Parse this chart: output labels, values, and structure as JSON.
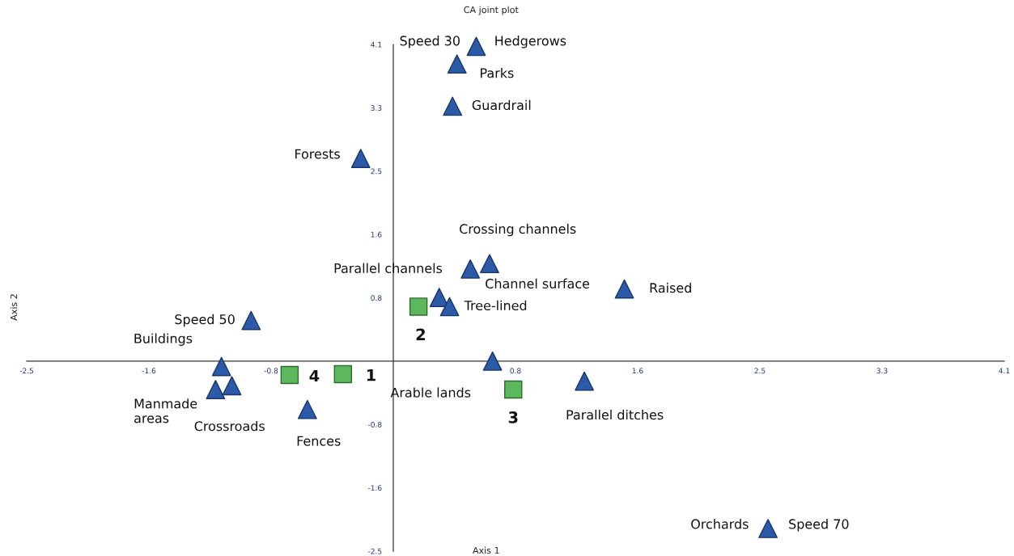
{
  "chart_data": {
    "type": "scatter",
    "title": "CA joint plot",
    "xlabel": "Axis 1",
    "ylabel": "Axis 2",
    "xlim": [
      -2.475,
      4.125
    ],
    "ylim": [
      -2.475,
      4.125
    ],
    "xticks": [
      {
        "value": -2.475,
        "label": "-2.5"
      },
      {
        "value": -1.65,
        "label": "-1.6"
      },
      {
        "value": -0.825,
        "label": "-0.8"
      },
      {
        "value": 0.825,
        "label": "0.8"
      },
      {
        "value": 1.65,
        "label": "1.6"
      },
      {
        "value": 2.475,
        "label": "2.5"
      },
      {
        "value": 3.3,
        "label": "3.3"
      },
      {
        "value": 4.125,
        "label": "4.1"
      }
    ],
    "yticks": [
      {
        "value": -2.475,
        "label": "-2.5"
      },
      {
        "value": -1.65,
        "label": "-1.6"
      },
      {
        "value": -0.825,
        "label": "-0.8"
      },
      {
        "value": 0.825,
        "label": "0.8"
      },
      {
        "value": 1.65,
        "label": "1.6"
      },
      {
        "value": 2.475,
        "label": "2.5"
      },
      {
        "value": 3.3,
        "label": "3.3"
      },
      {
        "value": 4.125,
        "label": "4.1"
      }
    ],
    "grid": false,
    "legend": false,
    "series": [
      {
        "color": "#2b5ba8",
        "marker": "triangle",
        "x": [
          0.56,
          0.43,
          0.4,
          -0.22,
          0.65,
          0.52,
          0.31,
          0.38,
          1.56,
          -0.96,
          -1.16,
          -1.2,
          -1.09,
          -0.58,
          0.67,
          1.29,
          2.53
        ],
        "values": [
          4.1,
          3.87,
          3.32,
          2.64,
          1.27,
          1.2,
          0.83,
          0.71,
          0.94,
          0.53,
          -0.07,
          -0.37,
          -0.32,
          -0.63,
          0.0,
          -0.26,
          -2.18
        ]
      },
      {
        "color": "#5cb85c",
        "marker": "square",
        "x": [
          -0.34,
          0.17,
          0.81,
          -0.7
        ],
        "values": [
          -0.17,
          0.71,
          -0.37,
          -0.18
        ]
      }
    ],
    "annotations": [
      {
        "text": "Speed 30",
        "x": 0.56,
        "y": 4.1
      },
      {
        "text": "Hedgerows",
        "x": 0.56,
        "y": 4.1
      },
      {
        "text": "Parks",
        "x": 0.43,
        "y": 3.87
      },
      {
        "text": "Guardrail",
        "x": 0.4,
        "y": 3.32
      },
      {
        "text": "Forests",
        "x": -0.22,
        "y": 2.64
      },
      {
        "text": "Crossing channels",
        "x": 0.65,
        "y": 1.27
      },
      {
        "text": "Channel surface",
        "x": 0.52,
        "y": 1.2
      },
      {
        "text": "Parallel channels",
        "x": 0.31,
        "y": 0.83
      },
      {
        "text": "Tree-lined",
        "x": 0.38,
        "y": 0.71
      },
      {
        "text": "Raised",
        "x": 1.56,
        "y": 0.94
      },
      {
        "text": "Speed 50",
        "x": -0.96,
        "y": 0.53
      },
      {
        "text": "Buildings",
        "x": -1.16,
        "y": -0.07
      },
      {
        "text": "Manmade\nareas",
        "x": -1.2,
        "y": -0.37
      },
      {
        "text": "Crossroads",
        "x": -1.09,
        "y": -0.32
      },
      {
        "text": "Fences",
        "x": -0.58,
        "y": -0.63
      },
      {
        "text": "Arable lands",
        "x": 0.67,
        "y": 0.0
      },
      {
        "text": "Parallel ditches",
        "x": 1.29,
        "y": -0.26
      },
      {
        "text": "Orchards",
        "x": 2.53,
        "y": -2.18
      },
      {
        "text": "Speed 70",
        "x": 2.53,
        "y": -2.18
      },
      {
        "text": "1",
        "x": -0.34,
        "y": -0.17
      },
      {
        "text": "2",
        "x": 0.17,
        "y": 0.71
      },
      {
        "text": "3",
        "x": 0.81,
        "y": -0.37
      },
      {
        "text": "4",
        "x": -0.7,
        "y": -0.18
      }
    ]
  }
}
